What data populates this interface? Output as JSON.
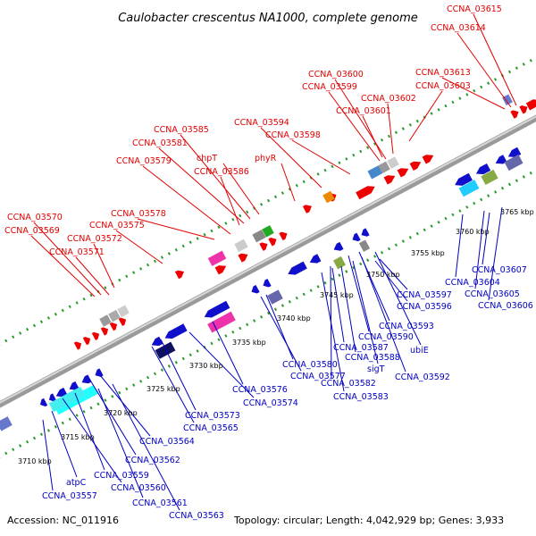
{
  "title": "Caulobacter crescentus NA1000, complete genome",
  "footer": {
    "accession": "Accession: NC_011916",
    "topology": "Topology: circular; Length: 4,042,929 bp; Genes: 3,933"
  },
  "colors": {
    "top_label": "#e00000",
    "bottom_label": "#0000c0",
    "backbone": "#888888",
    "ring_dots": "#2a9a2a",
    "forward_gene": "#ee0000",
    "reverse_gene": "#1010cc"
  },
  "tick_labels": [
    "3710 kbp",
    "3715 kbp",
    "3720 kbp",
    "3725 kbp",
    "3730 kbp",
    "3735 kbp",
    "3740 kbp",
    "3745 kbp",
    "3750 kbp",
    "3755 kbp",
    "3760 kbp",
    "3765 kbp"
  ],
  "top_labels": [
    "CCNA_03615",
    "CCNA_03614",
    "CCNA_03613",
    "CCNA_03603",
    "CCNA_03600",
    "CCNA_03599",
    "CCNA_03602",
    "CCNA_03601",
    "CCNA_03594",
    "CCNA_03598",
    "CCNA_03585",
    "CCNA_03581",
    "chpT",
    "phyR",
    "CCNA_03586",
    "CCNA_03579",
    "CCNA_03578",
    "CCNA_03575",
    "CCNA_03570",
    "CCNA_03569",
    "CCNA_03572",
    "CCNA_03571"
  ],
  "bottom_labels": [
    "CCNA_03604",
    "CCNA_03607",
    "CCNA_03605",
    "CCNA_03606",
    "CCNA_03597",
    "CCNA_03596",
    "CCNA_03593",
    "CCNA_03590",
    "ubiE",
    "CCNA_03587",
    "CCNA_03588",
    "sigT",
    "CCNA_03592",
    "CCNA_03580",
    "CCNA_03577",
    "CCNA_03582",
    "CCNA_03583",
    "CCNA_03576",
    "CCNA_03574",
    "CCNA_03573",
    "CCNA_03565",
    "CCNA_03564",
    "CCNA_03562",
    "CCNA_03559",
    "CCNA_03560",
    "atpC",
    "CCNA_03557",
    "CCNA_03561",
    "CCNA_03563"
  ]
}
